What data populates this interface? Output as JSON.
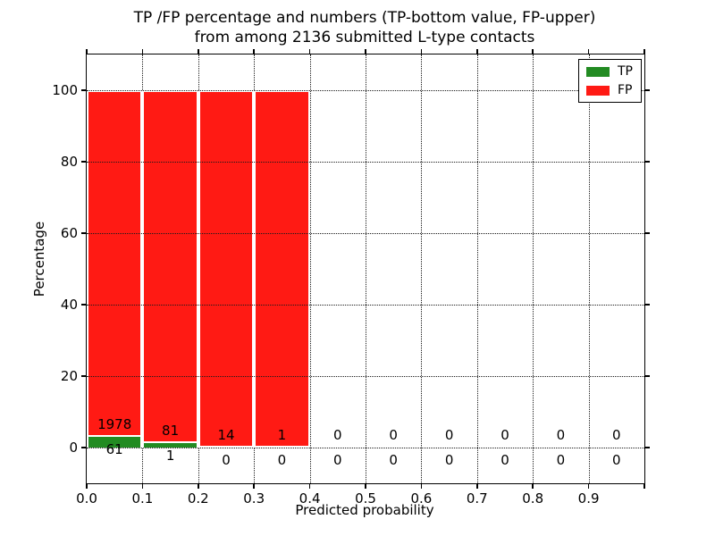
{
  "title": {
    "line1": "TP /FP percentage and numbers (TP-bottom value, FP-upper)",
    "line2": "from among 2136 submitted L-type contacts"
  },
  "axes_labels": {
    "xlabel": "Predicted probability",
    "ylabel": "Percentage"
  },
  "legend": {
    "items": [
      {
        "label": "TP",
        "color": "#228b22"
      },
      {
        "label": "FP",
        "color": "#ff1a14"
      }
    ]
  },
  "colors": {
    "tp": "#228b22",
    "fp": "#ff1a14",
    "grid": "#1a1a1a",
    "frame": "#000000",
    "bar_edge": "#ffffff"
  },
  "chart_data": {
    "type": "bar",
    "stacked": true,
    "title": "TP /FP percentage and numbers (TP-bottom value, FP-upper) from among 2136 submitted L-type contacts",
    "xlabel": "Predicted probability",
    "ylabel": "Percentage",
    "total_submitted_contacts": 2136,
    "bin_width": 0.1,
    "categories": [
      "0.0",
      "0.1",
      "0.2",
      "0.3",
      "0.4",
      "0.5",
      "0.6",
      "0.7",
      "0.8",
      "0.9"
    ],
    "xtick_labels": [
      "0.0",
      "0.1",
      "0.2",
      "0.3",
      "0.4",
      "0.5",
      "0.6",
      "0.7",
      "0.8",
      "0.9"
    ],
    "ytick_labels": [
      "0",
      "20",
      "40",
      "60",
      "80",
      "100"
    ],
    "yticks": [
      0,
      20,
      40,
      60,
      80,
      100
    ],
    "xlim": [
      0.0,
      1.0
    ],
    "ylim": [
      -10,
      110
    ],
    "grid": true,
    "grid_style": "dotted",
    "legend_position": "upper right",
    "series": [
      {
        "name": "TP",
        "color": "#228b22",
        "counts": [
          61,
          1,
          0,
          0,
          0,
          0,
          0,
          0,
          0,
          0
        ],
        "pct": [
          2.99,
          1.22,
          0,
          0,
          0,
          0,
          0,
          0,
          0,
          0
        ]
      },
      {
        "name": "FP",
        "color": "#ff1a14",
        "counts": [
          1978,
          81,
          14,
          1,
          0,
          0,
          0,
          0,
          0,
          0
        ],
        "pct": [
          97.01,
          98.78,
          100,
          100,
          0,
          0,
          0,
          0,
          0,
          0
        ]
      }
    ]
  }
}
